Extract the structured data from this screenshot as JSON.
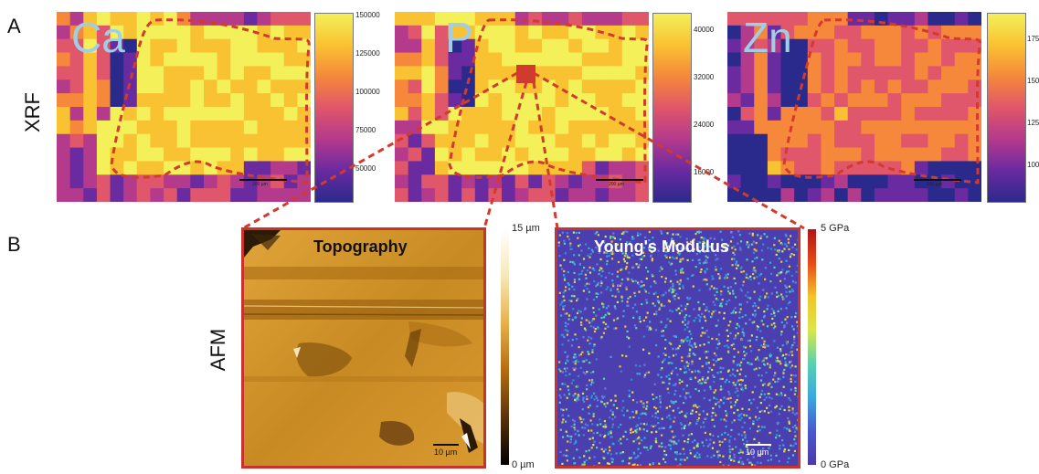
{
  "panels": {
    "a_label": "A",
    "b_label": "B",
    "xrf_label": "XRF",
    "afm_label": "AFM"
  },
  "xrf": {
    "maps": [
      {
        "element": "Ca",
        "ticks": [
          "150000",
          "125000",
          "100000",
          "75000",
          "50000"
        ],
        "scale": "200 µm"
      },
      {
        "element": "P",
        "ticks": [
          "40000",
          "32000",
          "24000",
          "16000"
        ],
        "scale": "200 µm"
      },
      {
        "element": "Zn",
        "ticks": [
          "175",
          "150",
          "125",
          "100"
        ],
        "scale": "200 µm"
      }
    ],
    "colormap": [
      "#2a2a8c",
      "#6a2aa0",
      "#b43a8c",
      "#e0566a",
      "#f5883a",
      "#f9c232",
      "#f3f05a"
    ]
  },
  "afm": {
    "topography": {
      "title": "Topography",
      "scale": "10 µm",
      "cbar_max": "15 µm",
      "cbar_min": "0 µm"
    },
    "modulus": {
      "title": "Young's Modulus",
      "scale": "10 µm",
      "cbar_max": "5 GPa",
      "cbar_min": "0 GPa"
    }
  },
  "colors": {
    "outline": "#d23a2e",
    "frame": "#c8342c",
    "element_text": "#9fcfe6"
  }
}
